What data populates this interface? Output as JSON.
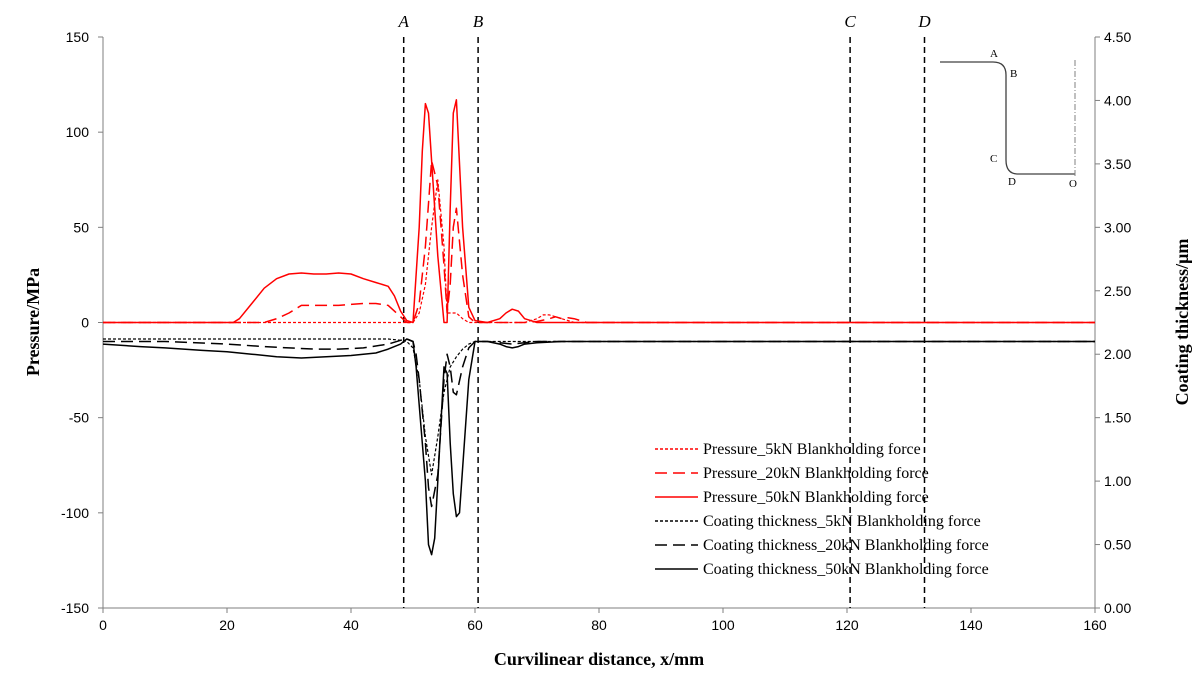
{
  "chart_data": {
    "type": "line",
    "xlabel": "Curvilinear distance, x/mm",
    "ylabel_left": "Pressure/MPa",
    "ylabel_right": "Coating thickness/μm",
    "xlim": [
      0,
      160
    ],
    "ylim_left": [
      -150,
      150
    ],
    "ylim_right": [
      0,
      4.5
    ],
    "x_ticks": [
      "0",
      "20",
      "40",
      "60",
      "80",
      "100",
      "120",
      "140",
      "160"
    ],
    "y_left_ticks": [
      "150",
      "100",
      "50",
      "0",
      "-50",
      "-100",
      "-150"
    ],
    "y_right_ticks": [
      "4.50",
      "4.00",
      "3.50",
      "3.00",
      "2.50",
      "2.00",
      "1.50",
      "1.00",
      "0.50",
      "0.00"
    ],
    "grid": false,
    "legend_position": "bottom-right",
    "markers": [
      {
        "label": "A",
        "x": 48.5
      },
      {
        "label": "B",
        "x": 60.5
      },
      {
        "label": "C",
        "x": 120.5
      },
      {
        "label": "D",
        "x": 132.5
      }
    ],
    "inset": {
      "labels": [
        "A",
        "B",
        "C",
        "D",
        "O"
      ]
    },
    "series": [
      {
        "name": "Pressure_5kN Blankholding force",
        "axis": "left",
        "color": "#ff0000",
        "style": "dotted",
        "x": [
          0,
          48,
          49,
          50,
          51,
          52,
          53,
          54,
          55,
          55.5,
          56,
          57,
          58,
          59,
          60,
          68,
          70,
          71,
          72,
          73,
          74,
          76,
          160
        ],
        "y": [
          0,
          0,
          0,
          0,
          5,
          20,
          50,
          75,
          40,
          5,
          5,
          5,
          2,
          0,
          0,
          0,
          2,
          4,
          4,
          3,
          2,
          0,
          0
        ]
      },
      {
        "name": "Pressure_20kN Blankholding force",
        "axis": "left",
        "color": "#ff0000",
        "style": "dashed",
        "x": [
          0,
          26,
          28,
          30,
          32,
          34,
          36,
          38,
          40,
          42,
          44,
          46,
          47,
          48,
          49,
          50,
          51,
          52,
          53,
          54,
          55,
          55.5,
          56,
          56.5,
          57,
          58,
          59,
          60,
          66,
          68,
          70,
          72,
          73,
          74,
          75,
          76,
          77,
          78,
          160
        ],
        "y": [
          0,
          0,
          2,
          5,
          9,
          9,
          9,
          9,
          9.5,
          10,
          10,
          9,
          6,
          3,
          0,
          0,
          10,
          40,
          85,
          72,
          30,
          5,
          20,
          50,
          60,
          25,
          3,
          0,
          0,
          0,
          0.5,
          2,
          3,
          2,
          2.5,
          2,
          1,
          0,
          0
        ]
      },
      {
        "name": "Pressure_50kN Blankholding force",
        "axis": "left",
        "color": "#ff0000",
        "style": "solid",
        "x": [
          0,
          21,
          22,
          24,
          26,
          28,
          30,
          32,
          34,
          36,
          38,
          40,
          42,
          44,
          46,
          47,
          48,
          49,
          50,
          51,
          51.5,
          52,
          52.5,
          53,
          54,
          55,
          55.5,
          56,
          56.5,
          57,
          58,
          59,
          60,
          62,
          64,
          65,
          66,
          67,
          68,
          70,
          160
        ],
        "y": [
          0,
          0,
          2,
          10,
          18,
          23,
          25.5,
          26,
          25.5,
          25.5,
          26,
          25.5,
          23,
          21,
          19,
          14,
          6,
          1,
          0,
          50,
          90,
          115,
          110,
          85,
          35,
          0,
          0,
          60,
          110,
          117,
          50,
          8,
          1,
          0,
          2,
          5,
          7,
          6,
          2,
          0,
          0
        ]
      },
      {
        "name": "Coating thickness_5kN Blankholding force",
        "axis": "right",
        "color": "#000000",
        "style": "dotted",
        "x": [
          0,
          46,
          48,
          49,
          50,
          50.5,
          51,
          52,
          53,
          54,
          55,
          56,
          57,
          58,
          59,
          60,
          160
        ],
        "y": [
          2.12,
          2.12,
          2.11,
          2.1,
          2.05,
          1.92,
          1.8,
          1.35,
          1.05,
          1.35,
          1.7,
          1.9,
          1.98,
          2.04,
          2.08,
          2.1,
          2.1
        ]
      },
      {
        "name": "Coating thickness_20kN Blankholding force",
        "axis": "right",
        "color": "#000000",
        "style": "dashed",
        "x": [
          0,
          10,
          20,
          26,
          30,
          34,
          38,
          42,
          46,
          48,
          49,
          50,
          50.5,
          51,
          52,
          52.5,
          53,
          54,
          55,
          55.5,
          56,
          56.5,
          57,
          58,
          59,
          60,
          62,
          64,
          66,
          68,
          70,
          72,
          80,
          160
        ],
        "y": [
          2.1,
          2.1,
          2.08,
          2.06,
          2.05,
          2.04,
          2.04,
          2.05,
          2.08,
          2.11,
          2.12,
          2.1,
          2.0,
          1.8,
          1.3,
          0.95,
          0.8,
          1.05,
          1.8,
          2.0,
          1.9,
          1.7,
          1.68,
          1.9,
          2.05,
          2.1,
          2.1,
          2.09,
          2.08,
          2.09,
          2.1,
          2.1,
          2.1,
          2.1
        ]
      },
      {
        "name": "Coating thickness_50kN Blankholding force",
        "axis": "right",
        "color": "#000000",
        "style": "solid",
        "x": [
          0,
          6,
          10,
          16,
          20,
          24,
          28,
          32,
          36,
          40,
          44,
          46,
          48,
          49,
          50,
          50.5,
          51,
          52,
          52.5,
          53,
          53.5,
          54,
          55,
          55.5,
          56,
          56.5,
          57,
          57.5,
          58,
          59,
          60,
          62,
          64,
          65,
          66,
          67,
          68,
          70,
          74,
          80,
          160
        ],
        "y": [
          2.08,
          2.06,
          2.05,
          2.03,
          2.02,
          2.0,
          1.98,
          1.97,
          1.98,
          1.99,
          2.01,
          2.04,
          2.08,
          2.12,
          2.1,
          1.9,
          1.6,
          1.0,
          0.5,
          0.42,
          0.55,
          1.0,
          1.9,
          1.85,
          1.3,
          0.9,
          0.72,
          0.75,
          1.1,
          1.8,
          2.1,
          2.1,
          2.08,
          2.06,
          2.05,
          2.06,
          2.08,
          2.09,
          2.1,
          2.1,
          2.1
        ]
      }
    ]
  }
}
